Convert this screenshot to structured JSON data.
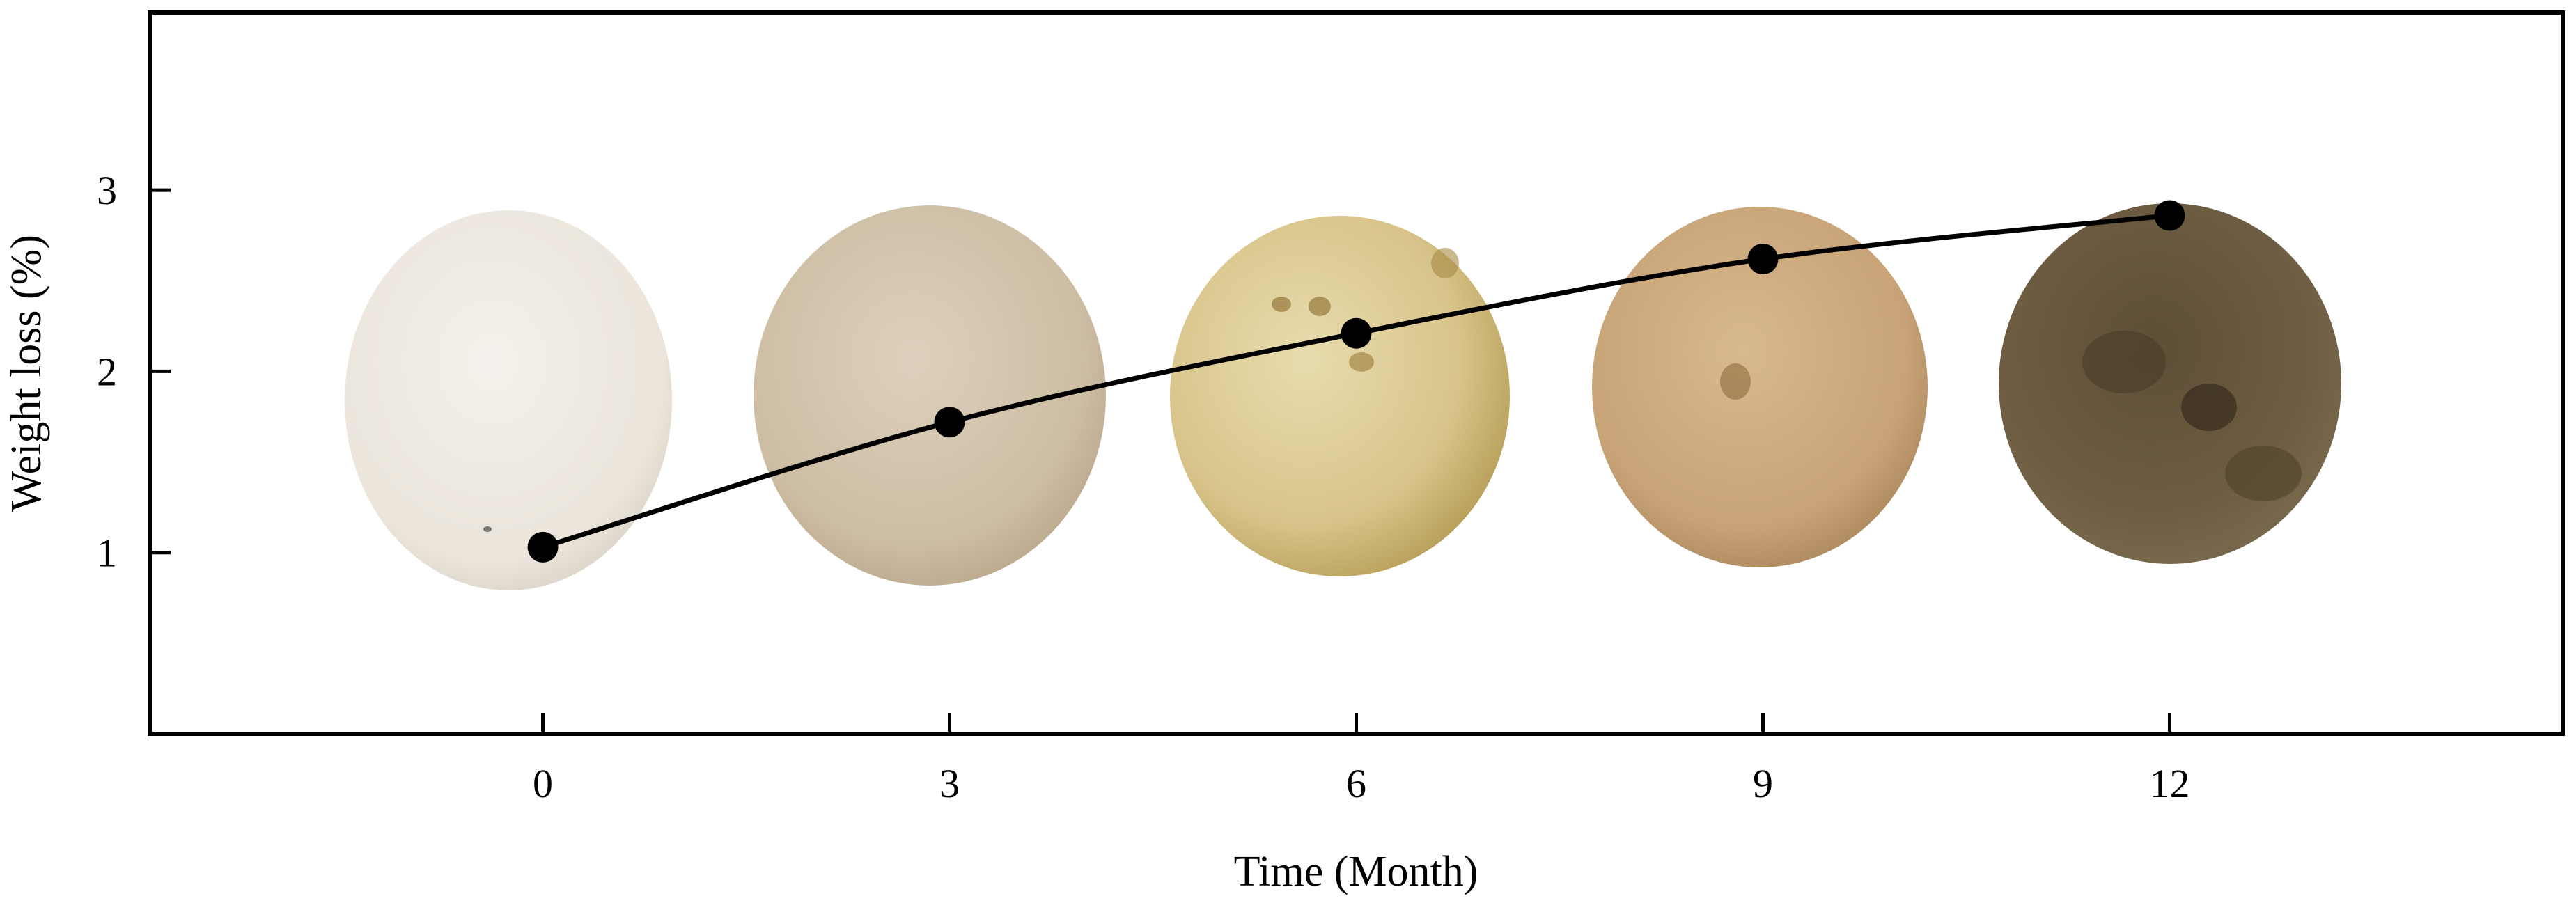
{
  "chart_data": {
    "type": "line",
    "title": "",
    "xlabel": "Time (Month)",
    "ylabel": "Weight loss (%)",
    "x": [
      0,
      3,
      6,
      9,
      12
    ],
    "y": [
      1.03,
      1.72,
      2.21,
      2.62,
      2.86
    ],
    "x_ticks": [
      "0",
      "3",
      "6",
      "9",
      "12"
    ],
    "y_ticks": [
      "1",
      "2",
      "3"
    ],
    "xlim": [
      -2.9,
      14.9
    ],
    "ylim": [
      0.0,
      3.98
    ],
    "grid": false,
    "legend": "none",
    "line_color": "#000000",
    "marker": "filled-circle",
    "sample_photos": [
      {
        "month": "0",
        "color": "#ece7de",
        "description": "pale white disc"
      },
      {
        "month": "3",
        "color": "#d2c2aa",
        "description": "light beige disc"
      },
      {
        "month": "6",
        "color": "#d9c58a",
        "description": "yellowish disc with spots"
      },
      {
        "month": "9",
        "color": "#c9a578",
        "description": "tan-orange disc"
      },
      {
        "month": "12",
        "color": "#6b5a3f",
        "description": "dark brown disc"
      }
    ]
  }
}
